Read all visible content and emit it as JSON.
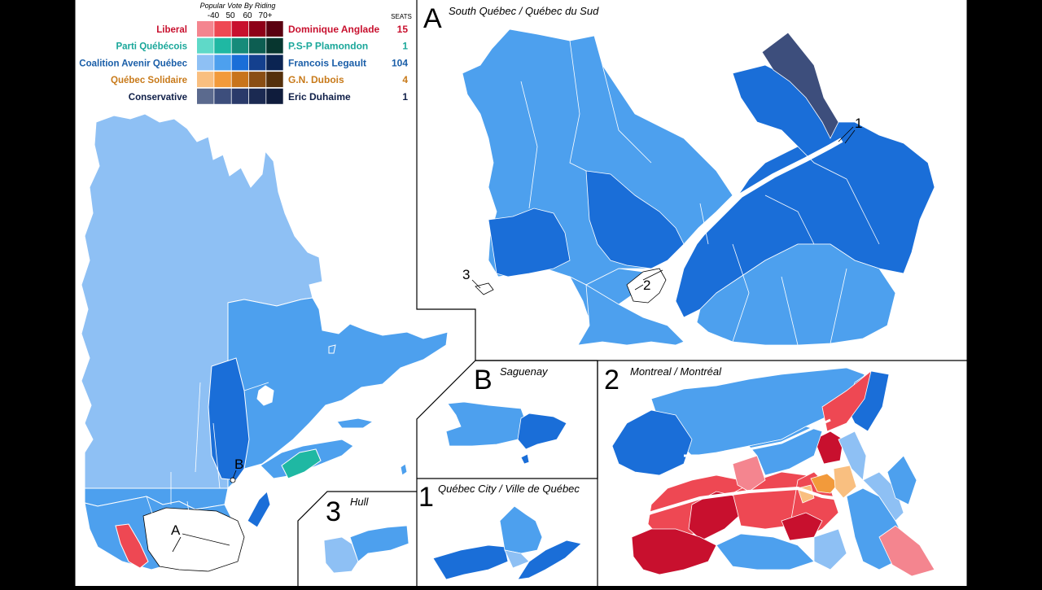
{
  "legend": {
    "heading": "Popular Vote By Riding",
    "bins": [
      "-40",
      "50",
      "60",
      "70+"
    ],
    "seats_heading": "SEATS",
    "parties": [
      {
        "party": "Liberal",
        "leader": "Dominique Anglade",
        "seats": "15",
        "label_color": "#c8102e",
        "swatches": [
          "#f4858f",
          "#ee4853",
          "#c8102e",
          "#8e0018",
          "#5a0010"
        ]
      },
      {
        "party": "Parti Québécois",
        "leader": "P.S-P Plamondon",
        "seats": "1",
        "label_color": "#1aa79a",
        "swatches": [
          "#5fd9c8",
          "#1fb8a3",
          "#168b7a",
          "#0d5e52",
          "#07362f"
        ]
      },
      {
        "party": "Coalition Avenir Québec",
        "leader": "Francois Legault",
        "seats": "104",
        "label_color": "#1a5ea8",
        "swatches": [
          "#8ec0f4",
          "#4da0ee",
          "#1a6ed8",
          "#14408e",
          "#0b2452"
        ]
      },
      {
        "party": "Québec Solidaire",
        "leader": "G.N. Dubois",
        "seats": "4",
        "label_color": "#c87a1a",
        "swatches": [
          "#f9bf80",
          "#f29a3b",
          "#c8741c",
          "#8a4e14",
          "#54300c"
        ]
      },
      {
        "party": "Conservative",
        "leader": "Eric Duhaime",
        "seats": "1",
        "label_color": "#0f1f48",
        "swatches": [
          "#5b6a8e",
          "#3d4e7c",
          "#2a3a6a",
          "#1b2a52",
          "#0f1c3c"
        ]
      }
    ]
  },
  "insets": {
    "a": {
      "num": "A",
      "title": "South Québec / Québec du Sud"
    },
    "b": {
      "num": "B",
      "title": "Saguenay"
    },
    "one": {
      "num": "1",
      "title": "Québec City / Ville de Québec"
    },
    "two": {
      "num": "2",
      "title": "Montreal / Montréal"
    },
    "three": {
      "num": "3",
      "title": "Hull"
    }
  },
  "callouts": {
    "a": "A",
    "b": "B",
    "one": "1",
    "two": "2",
    "three": "3"
  },
  "colors": {
    "background": "#ffffff",
    "frame": "#000000",
    "caq_light": "#8ec0f4",
    "caq_mid": "#4da0ee",
    "caq_dark": "#1a6ed8",
    "caq_navy": "#3d4e7c",
    "pq": "#1fb8a3",
    "lib_light": "#f4858f",
    "lib_mid": "#ee4853",
    "lib_dark": "#c8102e",
    "qs_light": "#f9bf80",
    "qs_mid": "#f29a3b"
  }
}
